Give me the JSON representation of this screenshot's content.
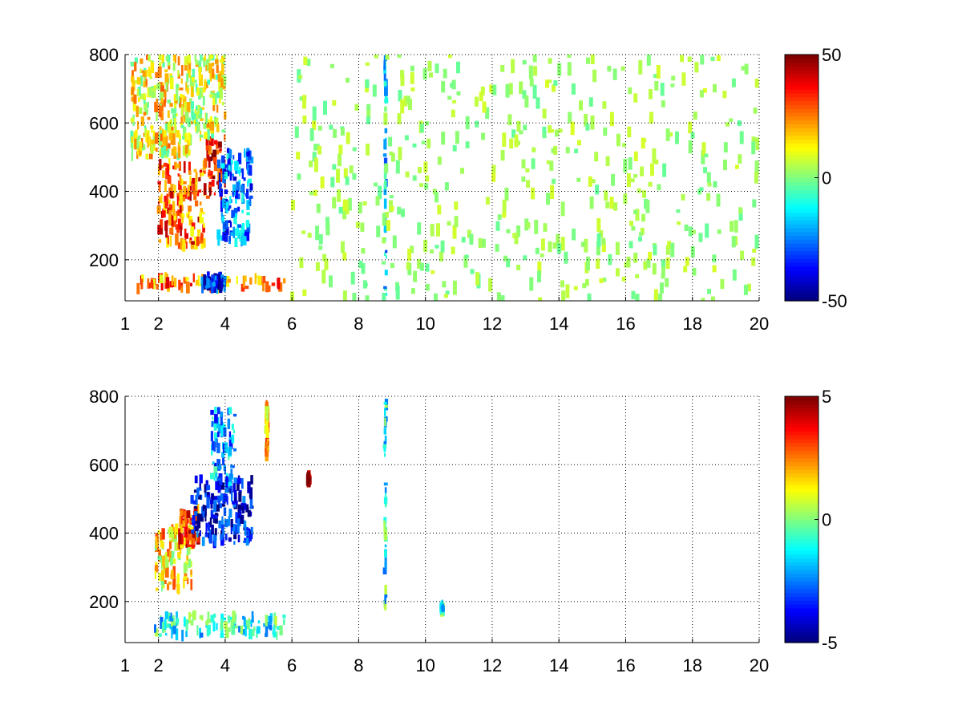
{
  "chart_data": [
    {
      "type": "heatmap",
      "title": "",
      "xlabel": "",
      "ylabel": "",
      "x_scale": "linear",
      "xlim": [
        1,
        20
      ],
      "ylim": [
        80,
        800
      ],
      "x_ticks": [
        1,
        2,
        4,
        6,
        8,
        10,
        12,
        14,
        16,
        18,
        20
      ],
      "y_ticks": [
        200,
        400,
        600,
        800
      ],
      "grid": true,
      "colorbar": {
        "colormap": "jet",
        "clim": [
          -50,
          50
        ],
        "ticks": [
          -50,
          0,
          50
        ]
      },
      "features": [
        {
          "x": [
            1.3,
            5.8
          ],
          "y": [
            115,
            150
          ],
          "value": 25,
          "note": "horizontal band"
        },
        {
          "x": [
            3.3,
            4.0
          ],
          "y": [
            115,
            150
          ],
          "value": -35
        },
        {
          "x": [
            2.0,
            3.4
          ],
          "y": [
            240,
            480
          ],
          "value": 28
        },
        {
          "x": [
            3.4,
            4.0
          ],
          "y": [
            380,
            560
          ],
          "value": 40
        },
        {
          "x": [
            3.8,
            4.8
          ],
          "y": [
            250,
            520
          ],
          "value": -25
        },
        {
          "x": [
            1.2,
            3.0
          ],
          "y": [
            500,
            800
          ],
          "value": 12
        },
        {
          "x": [
            3.0,
            4.0
          ],
          "y": [
            560,
            800
          ],
          "value": 8
        },
        {
          "x": [
            8.8,
            8.8
          ],
          "y": [
            80,
            800
          ],
          "value": -15,
          "note": "vertical streak"
        },
        {
          "x": [
            6.0,
            20.0
          ],
          "y": [
            80,
            800
          ],
          "value": 3,
          "note": "sparse speckle"
        }
      ]
    },
    {
      "type": "heatmap",
      "title": "",
      "xlabel": "",
      "ylabel": "",
      "x_scale": "linear",
      "xlim": [
        1,
        20
      ],
      "ylim": [
        80,
        800
      ],
      "x_ticks": [
        1,
        2,
        4,
        6,
        8,
        10,
        12,
        14,
        16,
        18,
        20
      ],
      "y_ticks": [
        200,
        400,
        600,
        800
      ],
      "grid": true,
      "colorbar": {
        "colormap": "jet",
        "clim": [
          -5,
          5
        ],
        "ticks": [
          -5,
          0,
          5
        ]
      },
      "features": [
        {
          "x": [
            1.9,
            5.8
          ],
          "y": [
            100,
            160
          ],
          "value": -1,
          "note": "horizontal band"
        },
        {
          "x": [
            1.9,
            3.0
          ],
          "y": [
            230,
            420
          ],
          "value": 1.5
        },
        {
          "x": [
            2.6,
            3.2
          ],
          "y": [
            360,
            470
          ],
          "value": 3
        },
        {
          "x": [
            3.0,
            4.8
          ],
          "y": [
            370,
            560
          ],
          "value": -4
        },
        {
          "x": [
            3.6,
            4.3
          ],
          "y": [
            550,
            760
          ],
          "value": -2
        },
        {
          "x": [
            5.25,
            5.25
          ],
          "y": [
            600,
            780
          ],
          "value": 2
        },
        {
          "x": [
            8.8,
            8.8
          ],
          "y": [
            180,
            790
          ],
          "value": -1
        },
        {
          "x": [
            6.5,
            6.5
          ],
          "y": [
            550,
            570
          ],
          "value": 5
        },
        {
          "x": [
            10.5,
            10.5
          ],
          "y": [
            170,
            190
          ],
          "value": -1
        }
      ]
    }
  ]
}
